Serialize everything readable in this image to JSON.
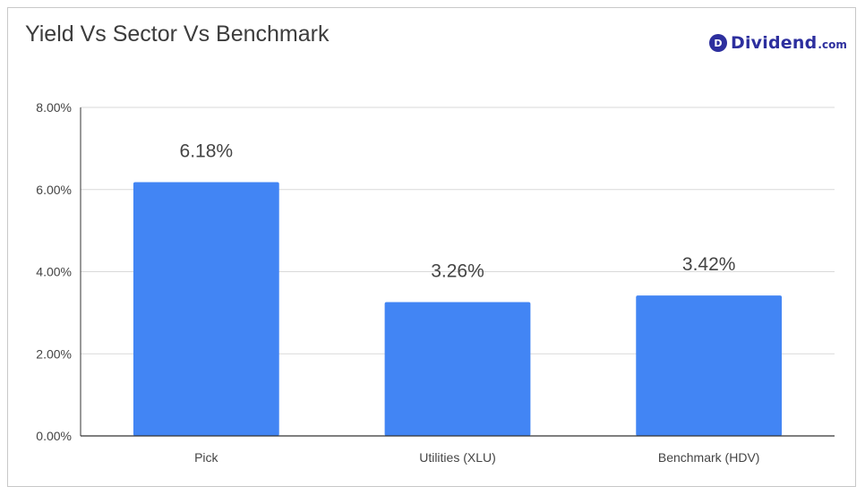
{
  "brand": {
    "mark": "D",
    "name": "Dividend",
    "tld": ".com",
    "color": "#2d2f9e"
  },
  "chart_data": {
    "type": "bar",
    "title": "Yield Vs Sector Vs Benchmark",
    "xlabel": "",
    "ylabel": "",
    "categories": [
      "Pick",
      "Utilities (XLU)",
      "Benchmark (HDV)"
    ],
    "values": [
      6.18,
      3.26,
      3.42
    ],
    "data_labels": [
      "6.18%",
      "3.26%",
      "3.42%"
    ],
    "ylim": [
      0,
      8
    ],
    "yticks": [
      0,
      2,
      4,
      6,
      8
    ],
    "ytick_labels": [
      "0.00%",
      "2.00%",
      "4.00%",
      "6.00%",
      "8.00%"
    ],
    "grid": true,
    "legend": "none",
    "bar_color": "#4285f4"
  }
}
